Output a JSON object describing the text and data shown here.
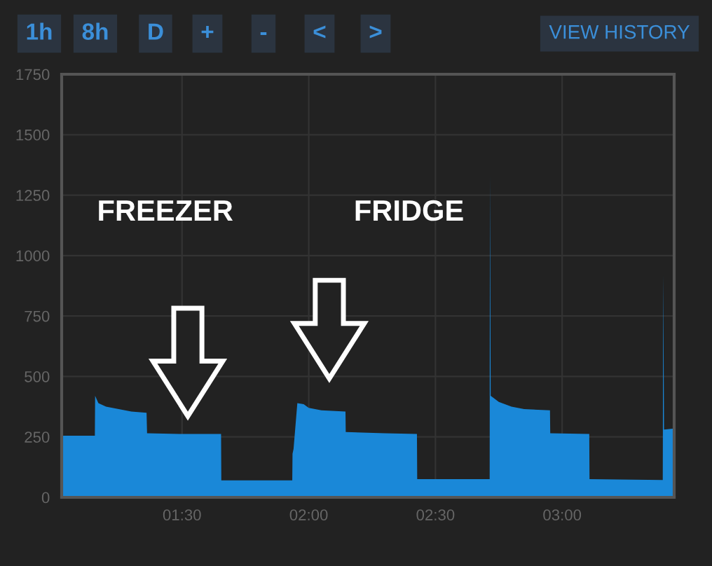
{
  "chart_data": {
    "type": "area",
    "x": [
      1.025,
      1.156,
      1.157,
      1.17,
      1.2,
      1.25,
      1.3,
      1.36,
      1.362,
      1.5,
      1.654,
      1.655,
      1.935,
      1.936,
      1.94,
      1.955,
      1.98,
      2.0,
      2.05,
      2.145,
      2.146,
      2.3,
      2.427,
      2.428,
      2.714,
      2.715,
      2.718,
      2.75,
      2.8,
      2.85,
      2.952,
      2.953,
      3.107,
      3.108,
      3.397,
      3.399,
      3.402,
      3.442
    ],
    "series": [
      {
        "color": "#1a88d8",
        "values": [
          255,
          255,
          420,
          390,
          375,
          365,
          355,
          350,
          265,
          262,
          262,
          70,
          70,
          180,
          200,
          390,
          385,
          370,
          360,
          355,
          270,
          265,
          262,
          75,
          75,
          1330,
          420,
          395,
          375,
          365,
          360,
          265,
          262,
          75,
          72,
          920,
          280,
          285
        ]
      }
    ],
    "xlim": [
      1.025,
      3.442
    ],
    "xticks": [
      {
        "value": 1.5,
        "label": "01:30"
      },
      {
        "value": 2.0,
        "label": "02:00"
      },
      {
        "value": 2.5,
        "label": "02:30"
      },
      {
        "value": 3.0,
        "label": "03:00"
      }
    ],
    "ylim": [
      0,
      1750
    ],
    "yticks": [
      0,
      250,
      500,
      750,
      1000,
      1250,
      1500,
      1750
    ],
    "grid": true,
    "annotations": [
      "FREEZER",
      "FRIDGE",
      "1h",
      "8h",
      "D",
      "+",
      "-",
      "<",
      ">",
      "VIEW HISTORY"
    ]
  }
}
